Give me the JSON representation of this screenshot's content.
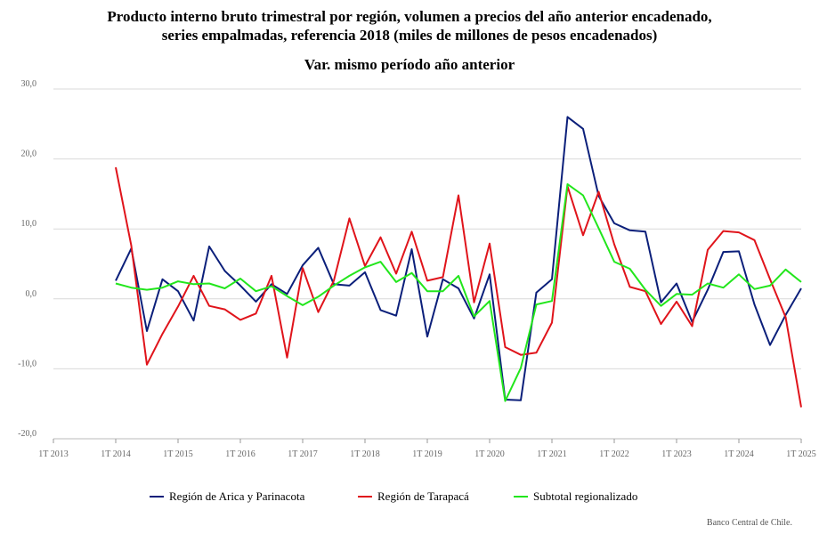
{
  "chart_data": {
    "type": "line",
    "title_line1": "Producto interno bruto trimestral por región, volumen a precios del año anterior encadenado,",
    "title_line2": "series empalmadas, referencia 2018 (miles de millones de pesos encadenados)",
    "subtitle": "Var. mismo período año anterior",
    "credit": "Banco Central de Chile.",
    "ylim": [
      -20,
      30
    ],
    "yticks": [
      "30,0",
      "20,0",
      "10,0",
      "0,0",
      "-10,0",
      "-20,0"
    ],
    "ytick_values": [
      30,
      20,
      10,
      0,
      -10,
      -20
    ],
    "xticks": [
      "1T 2013",
      "1T 2014",
      "1T 2015",
      "1T 2016",
      "1T 2017",
      "1T 2018",
      "1T 2019",
      "1T 2020",
      "1T 2021",
      "1T 2022",
      "1T 2023",
      "1T 2024",
      "1T 2025"
    ],
    "grid": true,
    "legend_position": "bottom",
    "series": [
      {
        "name": "Región de Arica y Parinacota",
        "color": "#0b1f7a",
        "values": [
          2.6,
          7.2,
          -4.6,
          2.8,
          1.1,
          -3.1,
          7.5,
          4.0,
          1.9,
          -0.4,
          2.1,
          0.7,
          4.8,
          7.3,
          2.1,
          1.9,
          3.8,
          -1.6,
          -2.4,
          7.1,
          -5.4,
          2.8,
          1.5,
          -2.8,
          3.5,
          -14.4,
          -14.5,
          0.9,
          2.8,
          26.0,
          24.3,
          14.7,
          10.8,
          9.8,
          9.6,
          -0.5,
          2.2,
          -3.3,
          1.3,
          6.7,
          6.8,
          -0.8,
          -6.6,
          -2.3,
          1.5
        ]
      },
      {
        "name": "Región de Tarapacá",
        "color": "#e0141b",
        "values": [
          18.8,
          7.6,
          -9.4,
          -5.0,
          -1.1,
          3.3,
          -1.0,
          -1.5,
          -3.0,
          -2.1,
          3.3,
          -8.4,
          4.4,
          -1.9,
          2.6,
          11.5,
          4.7,
          8.8,
          3.6,
          9.6,
          2.6,
          3.1,
          14.8,
          -0.5,
          7.9,
          -6.9,
          -8.0,
          -7.7,
          -3.4,
          16.1,
          9.1,
          15.3,
          7.8,
          1.7,
          1.1,
          -3.6,
          -0.4,
          -3.9,
          7.0,
          9.7,
          9.5,
          8.4,
          2.8,
          -2.6,
          -15.5
        ]
      },
      {
        "name": "Subtotal regionalizado",
        "color": "#22e61c",
        "values": [
          2.2,
          1.6,
          1.3,
          1.6,
          2.5,
          2.1,
          2.2,
          1.5,
          2.9,
          1.1,
          1.8,
          0.4,
          -0.9,
          0.3,
          1.9,
          3.3,
          4.5,
          5.3,
          2.4,
          3.7,
          1.1,
          1.1,
          3.3,
          -2.5,
          -0.3,
          -14.6,
          -9.9,
          -0.8,
          -0.3,
          16.4,
          14.8,
          10.1,
          5.3,
          4.3,
          1.3,
          -1.0,
          0.7,
          0.6,
          2.2,
          1.6,
          3.5,
          1.4,
          1.9,
          4.2,
          2.4
        ]
      }
    ]
  }
}
